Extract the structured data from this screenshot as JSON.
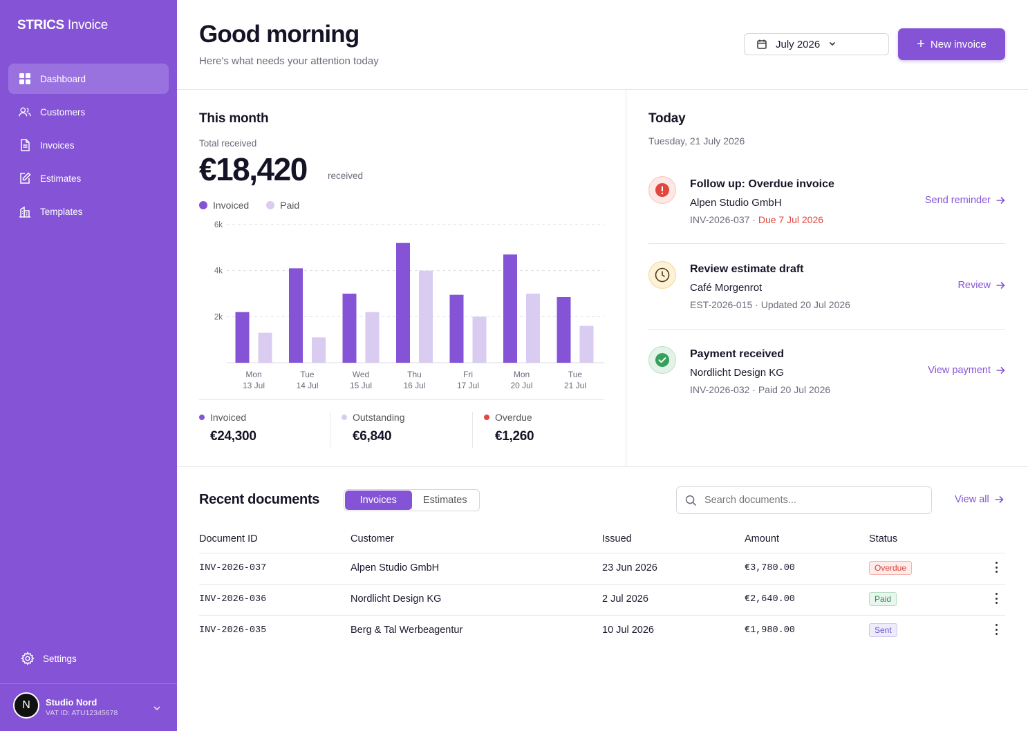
{
  "app": {
    "brand_bold": "STRICS",
    "brand_rest": "Invoice"
  },
  "sidebar": {
    "items": [
      {
        "label": "Dashboard",
        "icon": "grid-icon",
        "active": true
      },
      {
        "label": "Customers",
        "icon": "users-icon",
        "active": false
      },
      {
        "label": "Invoices",
        "icon": "document-icon",
        "active": false
      },
      {
        "label": "Estimates",
        "icon": "edit-document-icon",
        "active": false
      },
      {
        "label": "Templates",
        "icon": "building-icon",
        "active": false
      }
    ],
    "settings_label": "Settings",
    "account": {
      "initial": "N",
      "name": "Studio Nord",
      "vat": "VAT ID: ATU12345678"
    }
  },
  "header": {
    "greeting": "Good morning",
    "subtitle": "Here's what needs your attention today",
    "month": "July 2026",
    "new_invoice": "New invoice"
  },
  "month_panel": {
    "title": "This month",
    "total_label": "Total received",
    "total_value": "€18,420",
    "total_suffix": "received",
    "legend": {
      "invoiced": "Invoiced",
      "paid": "Paid"
    },
    "stats": [
      {
        "label": "Invoiced",
        "value": "€24,300",
        "color": "#8554d6"
      },
      {
        "label": "Outstanding",
        "value": "€6,840",
        "color": "#d9ccf0"
      },
      {
        "label": "Overdue",
        "value": "€1,260",
        "color": "#e0473d"
      }
    ]
  },
  "chart_data": {
    "type": "bar",
    "categories": [
      "Mon 13 Jul",
      "Tue 14 Jul",
      "Wed 15 Jul",
      "Thu 16 Jul",
      "Fri 17 Jul",
      "Mon 20 Jul",
      "Tue 21 Jul"
    ],
    "category_day": [
      "Mon",
      "Tue",
      "Wed",
      "Thu",
      "Fri",
      "Mon",
      "Tue"
    ],
    "category_date": [
      "13 Jul",
      "14 Jul",
      "15 Jul",
      "16 Jul",
      "17 Jul",
      "20 Jul",
      "21 Jul"
    ],
    "series": [
      {
        "name": "Invoiced",
        "color": "#8554d6",
        "values": [
          2200,
          4100,
          3000,
          5200,
          2950,
          4700,
          2850
        ]
      },
      {
        "name": "Paid",
        "color": "#d9ccf0",
        "values": [
          1300,
          1100,
          2200,
          4000,
          2000,
          3000,
          1600
        ]
      }
    ],
    "yticks": [
      2000,
      4000,
      6000
    ],
    "ytick_labels": [
      "2k",
      "4k",
      "6k"
    ],
    "ylim": [
      0,
      6000
    ],
    "grid": true,
    "legend": "top-left"
  },
  "today": {
    "title": "Today",
    "date": "Tuesday, 21 July 2026",
    "tasks": [
      {
        "title": "Follow up: Overdue invoice",
        "subtitle": "Alpen Studio GmbH",
        "meta": "INV-2026-037 ·",
        "meta_due": "Due 7 Jul 2026",
        "action": "Send reminder",
        "icon": "alert-icon",
        "color": "#e0473d"
      },
      {
        "title": "Review estimate draft",
        "subtitle": "Café Morgenrot",
        "meta": "EST-2026-015 · Updated 20 Jul 2026",
        "meta_due": "",
        "action": "Review",
        "icon": "clock-icon",
        "color": "#f5e3b3"
      },
      {
        "title": "Payment received",
        "subtitle": "Nordlicht Design KG",
        "meta": "INV-2026-032 · Paid 20 Jul 2026",
        "meta_due": "",
        "action": "View payment",
        "icon": "check-icon",
        "color": "#34a05a"
      }
    ]
  },
  "documents": {
    "title": "Recent documents",
    "tabs": [
      "Invoices",
      "Estimates"
    ],
    "active_tab": "Invoices",
    "search_placeholder": "Search documents...",
    "view_all": "View all",
    "columns": [
      "Document ID",
      "Customer",
      "Issued",
      "Amount",
      "Status"
    ],
    "rows": [
      {
        "id": "INV-2026-037",
        "customer": "Alpen Studio GmbH",
        "issued": "23 Jun 2026",
        "amount": "€3,780.00",
        "status": "Overdue"
      },
      {
        "id": "INV-2026-036",
        "customer": "Nordlicht Design KG",
        "issued": "2 Jul 2026",
        "amount": "€2,640.00",
        "status": "Paid"
      },
      {
        "id": "INV-2026-035",
        "customer": "Berg & Tal Werbeagentur",
        "issued": "10 Jul 2026",
        "amount": "€1,980.00",
        "status": "Sent"
      }
    ]
  }
}
